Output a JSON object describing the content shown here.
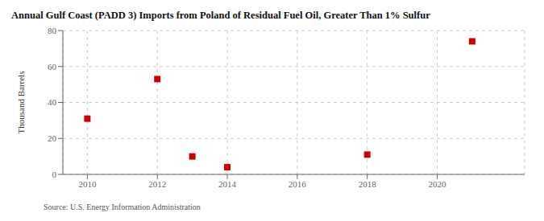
{
  "chart_data": {
    "type": "scatter",
    "title": "Annual Gulf Coast (PADD 3) Imports from Poland of Residual Fuel Oil, Greater Than 1% Sulfur",
    "ylabel": "Thousand Barrels",
    "annotations": [
      "Source: U.S. Energy Information Administration"
    ],
    "x": [
      2010,
      2012,
      2013,
      2014,
      2018,
      2021
    ],
    "values": [
      31,
      53,
      10,
      4,
      11,
      74
    ],
    "color": "#cc0000",
    "marker": "square",
    "xlim": [
      2009.3,
      2022.5
    ],
    "ylim": [
      0,
      80
    ],
    "xticks": [
      2010,
      2012,
      2014,
      2016,
      2018,
      2020
    ],
    "yticks": [
      0,
      20,
      40,
      60,
      80
    ],
    "grid": true
  }
}
